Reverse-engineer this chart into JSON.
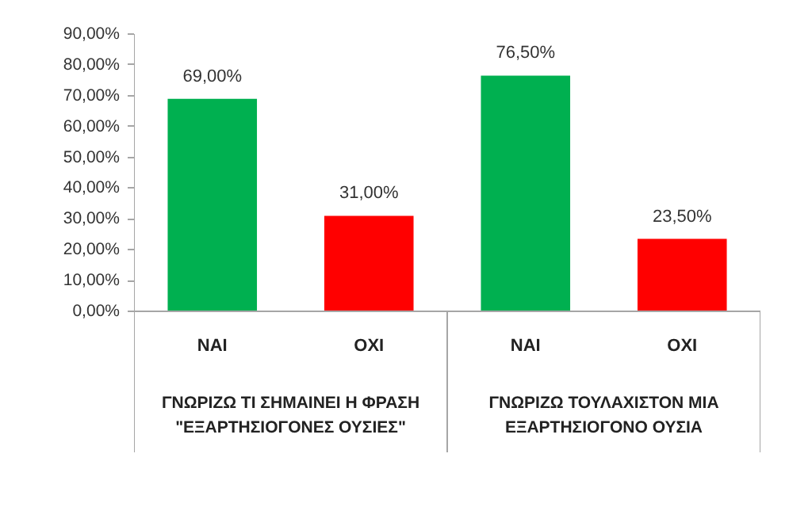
{
  "chart_data": {
    "type": "bar",
    "categories": [
      "ΝΑΙ",
      "ΟΧΙ",
      "ΝΑΙ",
      "ΟΧΙ"
    ],
    "values": [
      69.0,
      31.0,
      76.5,
      23.5
    ],
    "colors": [
      "#00b050",
      "#ff0000",
      "#00b050",
      "#ff0000"
    ],
    "value_labels": [
      "69,00%",
      "31,00%",
      "76,50%",
      "23,50%"
    ],
    "ylim": [
      0,
      90
    ],
    "yticks": [
      {
        "value": 0,
        "label": "0,00%"
      },
      {
        "value": 10,
        "label": "10,00%"
      },
      {
        "value": 20,
        "label": "20,00%"
      },
      {
        "value": 30,
        "label": "30,00%"
      },
      {
        "value": 40,
        "label": "40,00%"
      },
      {
        "value": 50,
        "label": "50,00%"
      },
      {
        "value": 60,
        "label": "60,00%"
      },
      {
        "value": 70,
        "label": "70,00%"
      },
      {
        "value": 80,
        "label": "80,00%"
      },
      {
        "value": 90,
        "label": "90,00%"
      }
    ],
    "annotations": [
      "ΓΝΩΡΙΖΩ ΤΙ ΣΗΜΑΙΝΕΙ Η ΦΡΑΣΗ \"ΕΞΑΡΤΗΣΙΟΓΟΝΕΣ ΟΥΣΙΕΣ\"",
      "ΓΝΩΡΙΖΩ ΤΟΥΛΑΧΙΣΤΟΝ ΜΙΑ ΕΞΑΡΤΗΣΙΟΓΟΝΟ ΟΥΣΙΑ"
    ],
    "grid": false
  }
}
